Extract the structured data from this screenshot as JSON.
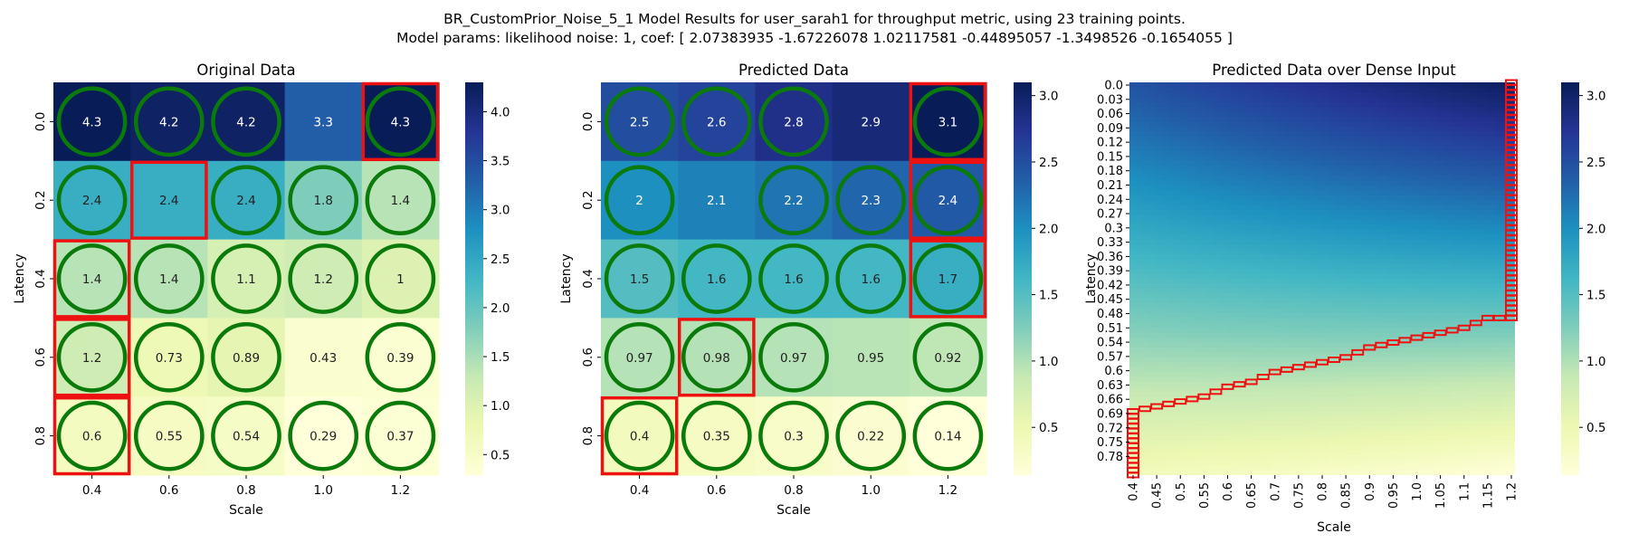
{
  "figure": {
    "suptitle_line1": "BR_CustomPrior_Noise_5_1 Model Results for user_sarah1 for throughput metric, using 23 training points.",
    "suptitle_line2": "Model params: likelihood noise: 1, coef: [ 2.07383935 -1.67226078  1.02117581 -0.44895057 -1.3498526  -0.1654055 ]"
  },
  "colormap": [
    "#ffffd9",
    "#edf8b1",
    "#c7e9b4",
    "#7fcdbb",
    "#41b6c4",
    "#1d91c0",
    "#225ea8",
    "#253494",
    "#081d58"
  ],
  "marker_colors": {
    "circle": "#0a7a0a",
    "box": "#ee1111"
  },
  "chart_data": [
    {
      "type": "heatmap",
      "title": "Original Data",
      "xlabel": "Scale",
      "ylabel": "Latency",
      "x_ticks": [
        "0.4",
        "0.6",
        "0.8",
        "1.0",
        "1.2"
      ],
      "y_ticks": [
        "0.0",
        "0.2",
        "0.4",
        "0.6",
        "0.8"
      ],
      "values": [
        [
          4.3,
          4.2,
          4.2,
          3.3,
          4.3
        ],
        [
          2.4,
          2.4,
          2.4,
          1.8,
          1.4
        ],
        [
          1.4,
          1.4,
          1.1,
          1.2,
          1.0
        ],
        [
          1.2,
          0.73,
          0.89,
          0.43,
          0.39
        ],
        [
          0.6,
          0.55,
          0.54,
          0.29,
          0.37
        ]
      ],
      "labels": [
        [
          "4.3",
          "4.2",
          "4.2",
          "3.3",
          "4.3"
        ],
        [
          "2.4",
          "2.4",
          "2.4",
          "1.8",
          "1.4"
        ],
        [
          "1.4",
          "1.4",
          "1.1",
          "1.2",
          "1"
        ],
        [
          "1.2",
          "0.73",
          "0.89",
          "0.43",
          "0.39"
        ],
        [
          "0.6",
          "0.55",
          "0.54",
          "0.29",
          "0.37"
        ]
      ],
      "vmin": 0.29,
      "vmax": 4.3,
      "colorbar_ticks": [
        "0.5",
        "1.0",
        "1.5",
        "2.0",
        "2.5",
        "3.0",
        "3.5",
        "4.0"
      ],
      "circled": [
        [
          0,
          0
        ],
        [
          0,
          1
        ],
        [
          0,
          2
        ],
        [
          0,
          4
        ],
        [
          1,
          0
        ],
        [
          1,
          2
        ],
        [
          1,
          3
        ],
        [
          1,
          4
        ],
        [
          2,
          0
        ],
        [
          2,
          1
        ],
        [
          2,
          2
        ],
        [
          2,
          3
        ],
        [
          2,
          4
        ],
        [
          3,
          0
        ],
        [
          3,
          1
        ],
        [
          3,
          2
        ],
        [
          3,
          4
        ],
        [
          4,
          0
        ],
        [
          4,
          1
        ],
        [
          4,
          2
        ],
        [
          4,
          3
        ],
        [
          4,
          4
        ]
      ],
      "boxed": [
        [
          0,
          4
        ],
        [
          1,
          1
        ],
        [
          2,
          0
        ],
        [
          3,
          0
        ],
        [
          4,
          0
        ]
      ]
    },
    {
      "type": "heatmap",
      "title": "Predicted Data",
      "xlabel": "Scale",
      "ylabel": "Latency",
      "x_ticks": [
        "0.4",
        "0.6",
        "0.8",
        "1.0",
        "1.2"
      ],
      "y_ticks": [
        "0.0",
        "0.2",
        "0.4",
        "0.6",
        "0.8"
      ],
      "values": [
        [
          2.5,
          2.6,
          2.8,
          2.9,
          3.1
        ],
        [
          2.0,
          2.1,
          2.2,
          2.3,
          2.4
        ],
        [
          1.5,
          1.6,
          1.6,
          1.6,
          1.7
        ],
        [
          0.97,
          0.98,
          0.97,
          0.95,
          0.92
        ],
        [
          0.4,
          0.35,
          0.3,
          0.22,
          0.14
        ]
      ],
      "labels": [
        [
          "2.5",
          "2.6",
          "2.8",
          "2.9",
          "3.1"
        ],
        [
          "2",
          "2.1",
          "2.2",
          "2.3",
          "2.4"
        ],
        [
          "1.5",
          "1.6",
          "1.6",
          "1.6",
          "1.7"
        ],
        [
          "0.97",
          "0.98",
          "0.97",
          "0.95",
          "0.92"
        ],
        [
          "0.4",
          "0.35",
          "0.3",
          "0.22",
          "0.14"
        ]
      ],
      "vmin": 0.14,
      "vmax": 3.1,
      "colorbar_ticks": [
        "0.5",
        "1.0",
        "1.5",
        "2.0",
        "2.5",
        "3.0"
      ],
      "circled": [
        [
          0,
          0
        ],
        [
          0,
          1
        ],
        [
          0,
          2
        ],
        [
          0,
          4
        ],
        [
          1,
          0
        ],
        [
          1,
          2
        ],
        [
          1,
          3
        ],
        [
          1,
          4
        ],
        [
          2,
          0
        ],
        [
          2,
          1
        ],
        [
          2,
          2
        ],
        [
          2,
          3
        ],
        [
          2,
          4
        ],
        [
          3,
          0
        ],
        [
          3,
          1
        ],
        [
          3,
          2
        ],
        [
          3,
          4
        ],
        [
          4,
          0
        ],
        [
          4,
          1
        ],
        [
          4,
          2
        ],
        [
          4,
          3
        ],
        [
          4,
          4
        ]
      ],
      "boxed": [
        [
          0,
          4
        ],
        [
          1,
          4
        ],
        [
          2,
          4
        ],
        [
          3,
          1
        ],
        [
          4,
          0
        ]
      ]
    },
    {
      "type": "heatmap",
      "title": "Predicted Data over Dense Input",
      "xlabel": "Scale",
      "ylabel": "Latency",
      "x_ticks": [
        "0.4",
        "0.45",
        "0.5",
        "0.55",
        "0.6",
        "0.65",
        "0.7",
        "0.75",
        "0.8",
        "0.85",
        "0.9",
        "0.95",
        "1.0",
        "1.05",
        "1.1",
        "1.15",
        "1.2"
      ],
      "y_ticks": [
        "0.0",
        "0.03",
        "0.06",
        "0.09",
        "0.12",
        "0.15",
        "0.18",
        "0.21",
        "0.24",
        "0.27",
        "0.3",
        "0.33",
        "0.36",
        "0.39",
        "0.42",
        "0.45",
        "0.48",
        "0.51",
        "0.54",
        "0.57",
        "0.6",
        "0.63",
        "0.66",
        "0.69",
        "0.72",
        "0.75",
        "0.78"
      ],
      "x_range": [
        0.4,
        1.2
      ],
      "y_range": [
        0.0,
        0.8
      ],
      "coef": [
        2.07383935,
        -1.67226078,
        1.02117581,
        -0.44895057,
        -1.3498526,
        -0.1654055
      ],
      "vmin": 0.14,
      "vmax": 3.1,
      "colorbar_ticks": [
        "0.5",
        "1.0",
        "1.5",
        "2.0",
        "2.5",
        "3.0"
      ],
      "boundary": [
        [
          1.2,
          0.0
        ],
        [
          1.2,
          0.48
        ],
        [
          1.15,
          0.48
        ],
        [
          1.1,
          0.5
        ],
        [
          1.05,
          0.51
        ],
        [
          1.0,
          0.52
        ],
        [
          0.95,
          0.53
        ],
        [
          0.9,
          0.54
        ],
        [
          0.85,
          0.56
        ],
        [
          0.8,
          0.57
        ],
        [
          0.75,
          0.58
        ],
        [
          0.7,
          0.59
        ],
        [
          0.65,
          0.61
        ],
        [
          0.6,
          0.62
        ],
        [
          0.55,
          0.64
        ],
        [
          0.5,
          0.65
        ],
        [
          0.45,
          0.66
        ],
        [
          0.4,
          0.67
        ],
        [
          0.4,
          0.8
        ]
      ]
    }
  ]
}
